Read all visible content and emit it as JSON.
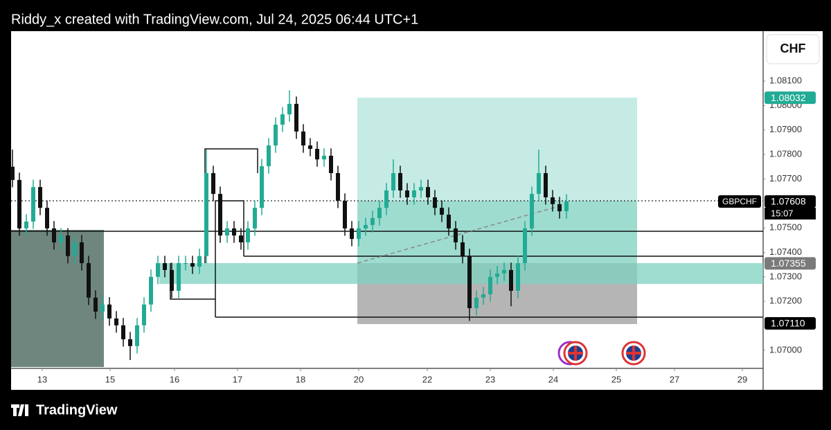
{
  "header": "Riddy_x created with TradingView.com, Jul 24, 2025 06:44 UTC+1",
  "logo": "TradingView",
  "chart_data": {
    "type": "candlestick",
    "symbol": "GBPCHF",
    "currency": "CHF",
    "countdown": "15:07",
    "up_color": "#22ab94",
    "down_color": "#111111",
    "open": [
      1.0775,
      1.07696,
      1.07498,
      1.07526,
      1.07667,
      1.07582,
      1.07498,
      1.07441,
      1.07469,
      1.07385,
      1.07441,
      1.07356,
      1.07215,
      1.07158,
      1.07187,
      1.0713,
      1.07102,
      1.07045,
      1.07017,
      1.07102,
      1.07187,
      1.073,
      1.07356,
      1.07328,
      1.07243,
      1.07356,
      1.07356,
      1.07342,
      1.07385,
      1.07724,
      1.07639,
      1.07469,
      1.07498,
      1.07469,
      1.07441,
      1.07498,
      1.07582,
      1.07752,
      1.07837,
      1.07922,
      1.07964,
      1.08007,
      1.07894,
      1.07837,
      1.07823,
      1.0778,
      1.07795,
      1.07724,
      1.07611,
      1.07498,
      1.07455,
      1.07498,
      1.07512,
      1.0754,
      1.07582,
      1.07653,
      1.07724,
      1.07653,
      1.07625,
      1.07653,
      1.07667,
      1.07625,
      1.07582,
      1.07554,
      1.07498,
      1.07441,
      1.07385,
      1.07172,
      1.07215,
      1.07229,
      1.073,
      1.07314,
      1.07328,
      1.07243,
      1.07356,
      1.07498,
      1.07639,
      1.07724,
      1.07625,
      1.07597,
      1.07568
    ],
    "high": [
      1.0782,
      1.07726,
      1.07556,
      1.07697,
      1.07697,
      1.07612,
      1.07528,
      1.07499,
      1.07499,
      1.07471,
      1.07471,
      1.07386,
      1.07245,
      1.07217,
      1.07217,
      1.0716,
      1.07132,
      1.07075,
      1.07132,
      1.07217,
      1.0733,
      1.07386,
      1.07386,
      1.07358,
      1.07386,
      1.07386,
      1.07386,
      1.07415,
      1.0782,
      1.07754,
      1.07669,
      1.07528,
      1.07528,
      1.07499,
      1.07528,
      1.07612,
      1.07782,
      1.07867,
      1.07952,
      1.07994,
      1.08062,
      1.08037,
      1.07924,
      1.07867,
      1.07853,
      1.07825,
      1.07825,
      1.07754,
      1.07641,
      1.07528,
      1.07528,
      1.07542,
      1.0757,
      1.07612,
      1.07683,
      1.0778,
      1.07754,
      1.07683,
      1.07683,
      1.07697,
      1.07697,
      1.07655,
      1.07612,
      1.07584,
      1.07528,
      1.07471,
      1.07415,
      1.07245,
      1.07259,
      1.0733,
      1.07344,
      1.07358,
      1.07358,
      1.07386,
      1.07528,
      1.07669,
      1.0782,
      1.07754,
      1.07655,
      1.07627,
      1.07638
    ],
    "low": [
      1.07666,
      1.07468,
      1.07468,
      1.07496,
      1.07552,
      1.07468,
      1.07411,
      1.07411,
      1.07355,
      1.07355,
      1.07326,
      1.07185,
      1.07128,
      1.07128,
      1.071,
      1.07072,
      1.07015,
      1.0696,
      1.06987,
      1.07072,
      1.07157,
      1.0727,
      1.07298,
      1.07213,
      1.07213,
      1.07326,
      1.07312,
      1.07312,
      1.07355,
      1.07609,
      1.07439,
      1.07439,
      1.07439,
      1.07411,
      1.07411,
      1.07468,
      1.07552,
      1.07722,
      1.07807,
      1.07892,
      1.07934,
      1.07864,
      1.07807,
      1.07793,
      1.0775,
      1.0775,
      1.07694,
      1.07581,
      1.07468,
      1.07425,
      1.07425,
      1.07468,
      1.07482,
      1.0751,
      1.07552,
      1.07623,
      1.07623,
      1.07595,
      1.07595,
      1.07623,
      1.07595,
      1.07552,
      1.07524,
      1.07468,
      1.07411,
      1.07355,
      1.0712,
      1.07142,
      1.07185,
      1.07199,
      1.0727,
      1.07284,
      1.0718,
      1.07213,
      1.07326,
      1.07468,
      1.07609,
      1.07595,
      1.07567,
      1.07538,
      1.07538
    ],
    "close": [
      1.07696,
      1.07498,
      1.07526,
      1.07667,
      1.07582,
      1.07498,
      1.07441,
      1.07469,
      1.07385,
      1.07441,
      1.07356,
      1.07215,
      1.07158,
      1.07187,
      1.0713,
      1.07102,
      1.07045,
      1.07017,
      1.07102,
      1.07187,
      1.073,
      1.07356,
      1.07328,
      1.07243,
      1.07356,
      1.07356,
      1.07342,
      1.07385,
      1.07724,
      1.07639,
      1.07469,
      1.07498,
      1.07469,
      1.07441,
      1.07498,
      1.07582,
      1.07752,
      1.07837,
      1.07922,
      1.07964,
      1.08007,
      1.07894,
      1.07837,
      1.07823,
      1.0778,
      1.07795,
      1.07724,
      1.07611,
      1.07498,
      1.07455,
      1.07498,
      1.07512,
      1.0754,
      1.07582,
      1.07653,
      1.07724,
      1.07653,
      1.07625,
      1.07653,
      1.07667,
      1.07625,
      1.07582,
      1.07554,
      1.07498,
      1.07441,
      1.07385,
      1.07172,
      1.07215,
      1.07229,
      1.073,
      1.07314,
      1.07328,
      1.07243,
      1.07356,
      1.07498,
      1.07639,
      1.07724,
      1.07625,
      1.07597,
      1.07568,
      1.07608
    ],
    "xlim": [
      -0.2,
      108.3
    ],
    "xticks": [
      {
        "value": 4.3,
        "label": "13"
      },
      {
        "value": 14.1,
        "label": "15"
      },
      {
        "value": 23.4,
        "label": "16"
      },
      {
        "value": 32.5,
        "label": "17"
      },
      {
        "value": 41.6,
        "label": "18"
      },
      {
        "value": 50,
        "label": "20"
      },
      {
        "value": 59.9,
        "label": "22"
      },
      {
        "value": 69,
        "label": "23"
      },
      {
        "value": 78.1,
        "label": "24"
      },
      {
        "value": 87.2,
        "label": "25"
      },
      {
        "value": 95.6,
        "label": "27"
      },
      {
        "value": 105.4,
        "label": "29"
      }
    ],
    "ylim": [
      1.06926,
      1.08304
    ],
    "yticks": [
      {
        "value": 1.07,
        "label": "1.07000"
      },
      {
        "value": 1.072,
        "label": "1.07200"
      },
      {
        "value": 1.073,
        "label": "1.07300"
      },
      {
        "value": 1.074,
        "label": "1.07400"
      },
      {
        "value": 1.075,
        "label": "1.07500"
      },
      {
        "value": 1.077,
        "label": "1.07700"
      },
      {
        "value": 1.078,
        "label": "1.07800"
      },
      {
        "value": 1.079,
        "label": "1.07900"
      },
      {
        "value": 1.08,
        "label": "1.08000"
      },
      {
        "value": 1.081,
        "label": "1.08100"
      }
    ],
    "price_tags": [
      {
        "value": 1.08032,
        "label": "1.08032",
        "color": "#22ab94"
      },
      {
        "value": 1.07608,
        "label": "1.07608",
        "color": "#000000"
      },
      {
        "value": 1.07355,
        "label": "1.07355",
        "color": "#7a7a7a"
      },
      {
        "value": 1.0711,
        "label": "1.07110",
        "color": "#000000"
      }
    ]
  }
}
